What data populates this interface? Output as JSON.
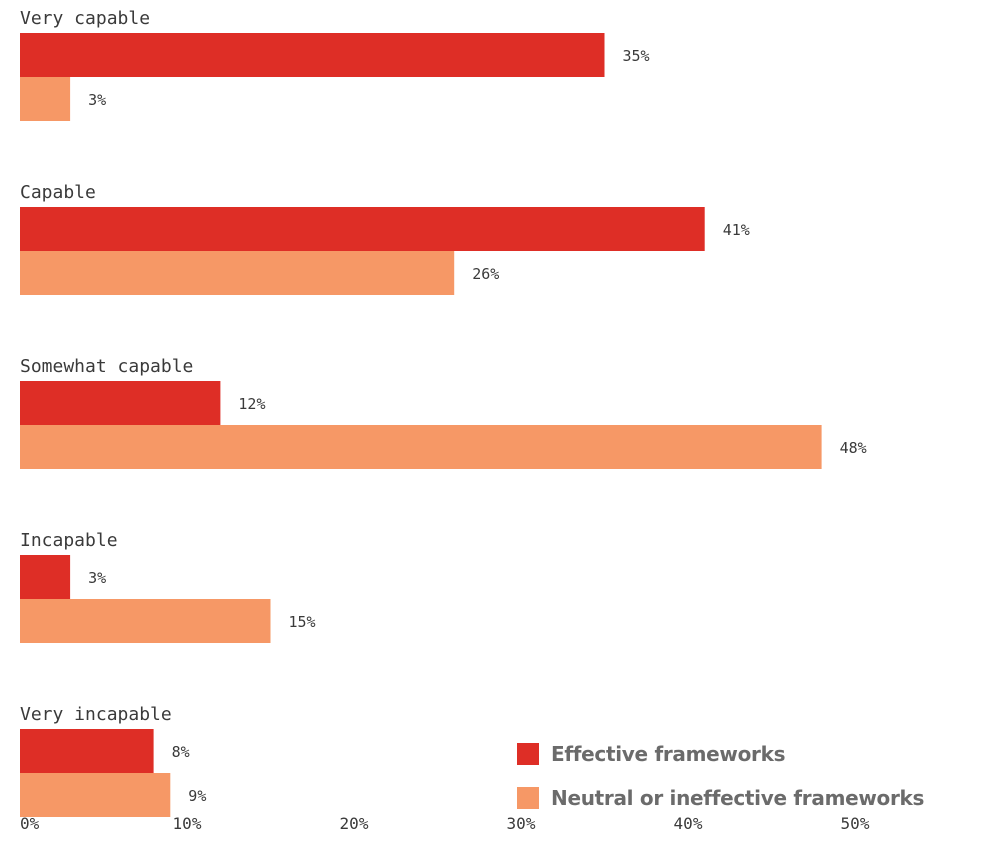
{
  "chart_data": {
    "type": "bar",
    "orientation": "horizontal",
    "categories": [
      "Very capable",
      "Capable",
      "Somewhat capable",
      "Incapable",
      "Very incapable"
    ],
    "series": [
      {
        "name": "Effective frameworks",
        "color": "#de2e26",
        "values": [
          35,
          41,
          12,
          3,
          8
        ],
        "labels": [
          "35%",
          "41%",
          "12%",
          "3%",
          "8%"
        ]
      },
      {
        "name": "Neutral or ineffective frameworks",
        "color": "#f69866",
        "values": [
          3,
          26,
          48,
          15,
          9
        ],
        "labels": [
          "3%",
          "26%",
          "48%",
          "15%",
          "9%"
        ]
      }
    ],
    "xticks": [
      0,
      10,
      20,
      30,
      40,
      50
    ],
    "xtick_labels": [
      "0%",
      "10%",
      "20%",
      "30%",
      "40%",
      "50%"
    ],
    "xlim": [
      0,
      50
    ],
    "grid": false,
    "legend_position": "bottom-right"
  }
}
